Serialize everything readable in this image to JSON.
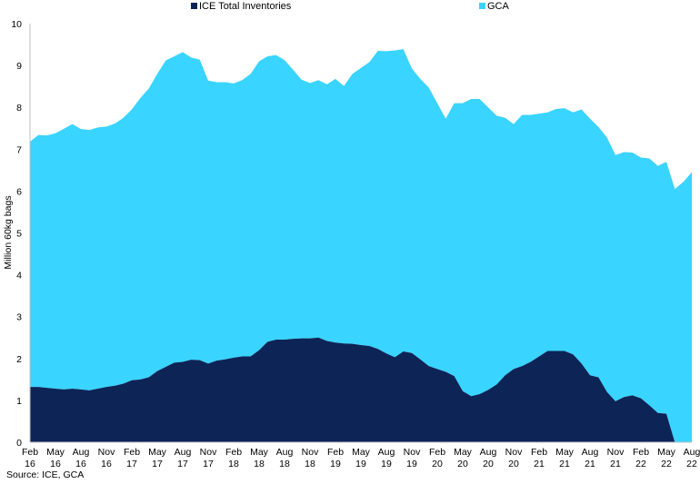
{
  "chart_data": {
    "type": "area",
    "ylabel": "Million 60kg bags",
    "ylim": [
      0,
      10
    ],
    "yticks": [
      "0",
      "1",
      "2",
      "3",
      "4",
      "5",
      "6",
      "7",
      "8",
      "9",
      "10"
    ],
    "xtick_labels": [
      [
        "Feb",
        "16"
      ],
      [
        "May",
        "16"
      ],
      [
        "Aug",
        "16"
      ],
      [
        "Nov",
        "16"
      ],
      [
        "Feb",
        "17"
      ],
      [
        "May",
        "17"
      ],
      [
        "Aug",
        "17"
      ],
      [
        "Nov",
        "17"
      ],
      [
        "Feb",
        "18"
      ],
      [
        "May",
        "18"
      ],
      [
        "Aug",
        "18"
      ],
      [
        "Nov",
        "18"
      ],
      [
        "Feb",
        "19"
      ],
      [
        "May",
        "19"
      ],
      [
        "Aug",
        "19"
      ],
      [
        "Nov",
        "19"
      ],
      [
        "Feb",
        "20"
      ],
      [
        "May",
        "20"
      ],
      [
        "Aug",
        "20"
      ],
      [
        "Nov",
        "20"
      ],
      [
        "Feb",
        "21"
      ],
      [
        "May",
        "21"
      ],
      [
        "Aug",
        "21"
      ],
      [
        "Nov",
        "21"
      ],
      [
        "Feb",
        "22"
      ],
      [
        "May",
        "22"
      ],
      [
        "Aug",
        "22"
      ]
    ],
    "x": [
      "2016-02",
      "2016-03",
      "2016-04",
      "2016-05",
      "2016-06",
      "2016-07",
      "2016-08",
      "2016-09",
      "2016-10",
      "2016-11",
      "2016-12",
      "2017-01",
      "2017-02",
      "2017-03",
      "2017-04",
      "2017-05",
      "2017-06",
      "2017-07",
      "2017-08",
      "2017-09",
      "2017-10",
      "2017-11",
      "2017-12",
      "2018-01",
      "2018-02",
      "2018-03",
      "2018-04",
      "2018-05",
      "2018-06",
      "2018-07",
      "2018-08",
      "2018-09",
      "2018-10",
      "2018-11",
      "2018-12",
      "2019-01",
      "2019-02",
      "2019-03",
      "2019-04",
      "2019-05",
      "2019-06",
      "2019-07",
      "2019-08",
      "2019-09",
      "2019-10",
      "2019-11",
      "2019-12",
      "2020-01",
      "2020-02",
      "2020-03",
      "2020-04",
      "2020-05",
      "2020-06",
      "2020-07",
      "2020-08",
      "2020-09",
      "2020-10",
      "2020-11",
      "2020-12",
      "2021-01",
      "2021-02",
      "2021-03",
      "2021-04",
      "2021-05",
      "2021-06",
      "2021-07",
      "2021-08",
      "2021-09",
      "2021-10",
      "2021-11",
      "2021-12",
      "2022-01",
      "2022-02",
      "2022-03",
      "2022-04",
      "2022-05",
      "2022-06",
      "2022-07",
      "2022-08"
    ],
    "series": [
      {
        "name": "ICE Total Inventories",
        "color": "#0d2457",
        "values": [
          1.32,
          1.32,
          1.3,
          1.28,
          1.26,
          1.28,
          1.26,
          1.24,
          1.28,
          1.32,
          1.35,
          1.4,
          1.48,
          1.5,
          1.55,
          1.7,
          1.8,
          1.9,
          1.92,
          1.97,
          1.96,
          1.88,
          1.95,
          1.98,
          2.02,
          2.05,
          2.05,
          2.2,
          2.4,
          2.45,
          2.45,
          2.47,
          2.48,
          2.48,
          2.5,
          2.42,
          2.38,
          2.36,
          2.35,
          2.32,
          2.3,
          2.23,
          2.12,
          2.03,
          2.17,
          2.13,
          1.98,
          1.82,
          1.75,
          1.68,
          1.58,
          1.22,
          1.1,
          1.15,
          1.25,
          1.38,
          1.6,
          1.75,
          1.82,
          1.92,
          2.05,
          2.18,
          2.18,
          2.18,
          2.1,
          1.88,
          1.6,
          1.55,
          1.2,
          0.98,
          1.08,
          1.12,
          1.05,
          0.88,
          0.7,
          0.68,
          0.0,
          0.0,
          0.0
        ]
      },
      {
        "name": "GCA",
        "color": "#39d4ff",
        "values": [
          5.86,
          6.02,
          6.03,
          6.1,
          6.23,
          6.32,
          6.22,
          6.22,
          6.24,
          6.22,
          6.26,
          6.35,
          6.47,
          6.72,
          6.9,
          7.1,
          7.32,
          7.32,
          7.4,
          7.22,
          7.18,
          6.76,
          6.65,
          6.62,
          6.55,
          6.6,
          6.75,
          6.9,
          6.82,
          6.8,
          6.68,
          6.43,
          6.18,
          6.1,
          6.15,
          6.13,
          6.3,
          6.15,
          6.45,
          6.62,
          6.78,
          7.12,
          7.22,
          7.33,
          7.22,
          6.8,
          6.7,
          6.65,
          6.35,
          6.05,
          6.52,
          6.88,
          7.1,
          7.05,
          6.75,
          6.42,
          6.15,
          5.85,
          6.0,
          5.9,
          5.8,
          5.7,
          5.78,
          5.8,
          5.78,
          6.07,
          6.13,
          5.98,
          6.08,
          5.88,
          5.85,
          5.8,
          5.75,
          5.9,
          5.9,
          6.02,
          6.05,
          6.22,
          6.45
        ]
      }
    ],
    "legend": {
      "position": "top"
    },
    "grid": false,
    "source_note": "Source: ICE, GCA"
  }
}
